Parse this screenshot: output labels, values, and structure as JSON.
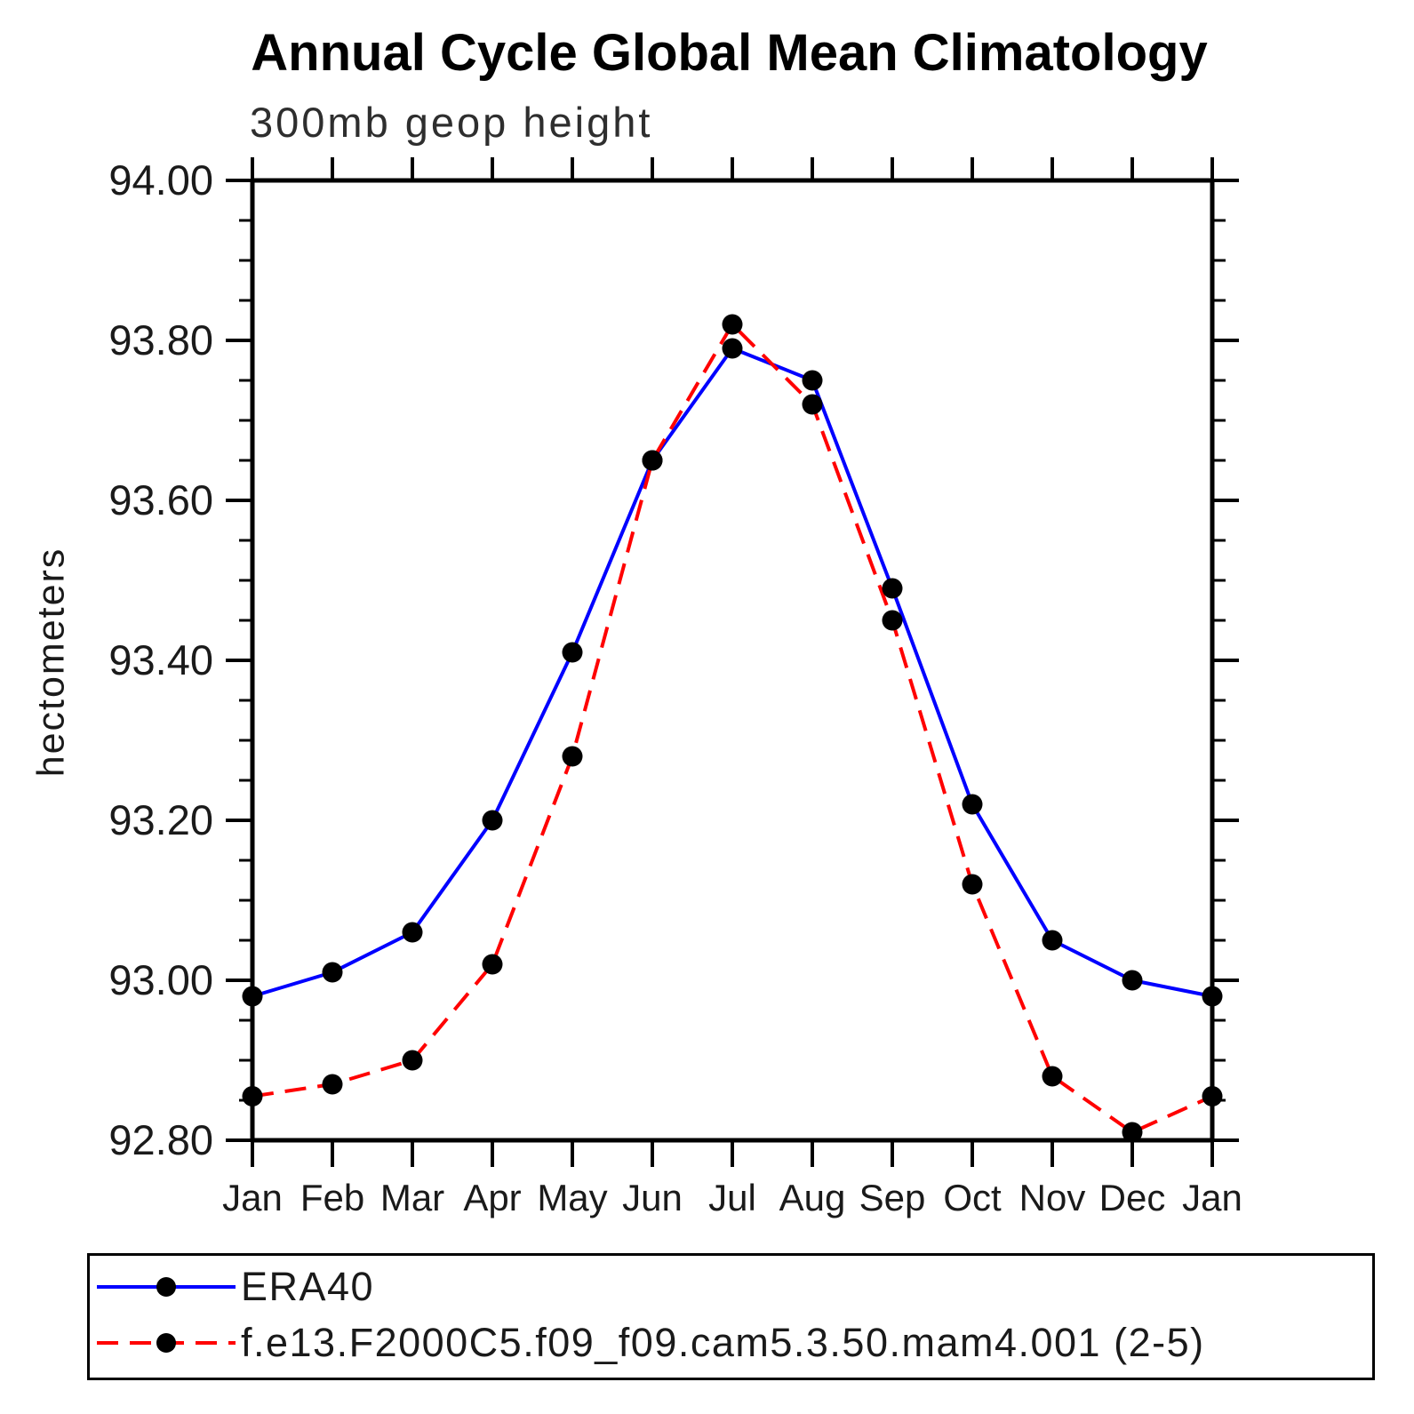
{
  "chart_data": {
    "type": "line",
    "title": "Annual Cycle Global Mean Climatology",
    "subtitle": "300mb geop height",
    "ylabel": "hectometers",
    "categories": [
      "Jan",
      "Feb",
      "Mar",
      "Apr",
      "May",
      "Jun",
      "Jul",
      "Aug",
      "Sep",
      "Oct",
      "Nov",
      "Dec",
      "Jan"
    ],
    "ylim": [
      92.8,
      94.0
    ],
    "ytick_labels": [
      "94.00",
      "93.80",
      "93.60",
      "93.40",
      "93.20",
      "93.00",
      "92.80"
    ],
    "ytick_major_step": 0.2,
    "ytick_minor_step": 0.05,
    "grid": "off",
    "legend_position": "bottom-left-box",
    "series": [
      {
        "name": "ERA40",
        "color": "#0000ff",
        "line_style": "solid",
        "marker": "circle",
        "marker_color": "#000000",
        "values": [
          92.98,
          93.01,
          93.06,
          93.2,
          93.41,
          93.65,
          93.79,
          93.75,
          93.49,
          93.22,
          93.05,
          93.0,
          92.98
        ]
      },
      {
        "name": "f.e13.F2000C5.f09_f09.cam5.3.50.mam4.001 (2-5)",
        "color": "#ff0000",
        "line_style": "dashed",
        "marker": "circle",
        "marker_color": "#000000",
        "values": [
          92.855,
          92.87,
          92.9,
          93.02,
          93.28,
          93.65,
          93.82,
          93.72,
          93.45,
          93.12,
          92.88,
          92.81,
          92.855
        ]
      }
    ]
  }
}
